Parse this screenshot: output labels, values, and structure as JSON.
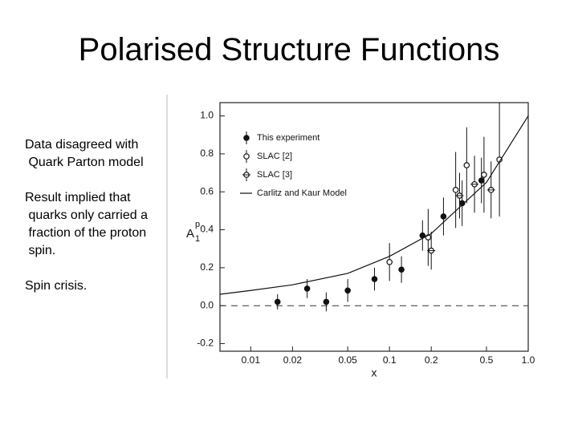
{
  "title": "Polarised Structure Functions",
  "paragraphs": [
    [
      "Data disagreed with",
      " Quark Parton model"
    ],
    [
      "Result implied that",
      " quarks only carried a",
      " fraction of the proton",
      " spin."
    ],
    [
      "Spin crisis."
    ]
  ],
  "chart_data": {
    "type": "scatter",
    "xlabel": "x",
    "ylabel": {
      "base": "A",
      "sub": "1",
      "sup": "p"
    },
    "xscale": "log",
    "xlim": [
      0.006,
      1.0
    ],
    "ylim": [
      -0.24,
      1.07
    ],
    "xticks": [
      0.01,
      0.02,
      0.05,
      0.1,
      0.2,
      0.5,
      {
        "value": 1.0,
        "label": "1.0"
      }
    ],
    "yticks": [
      {
        "value": 1.0,
        "label": "1.0"
      },
      0.8,
      0.6,
      0.4,
      0.2,
      {
        "value": 0.0,
        "label": "0.0"
      },
      -0.2
    ],
    "legend": "upper left",
    "series": [
      {
        "name": "This experiment",
        "marker": "filled",
        "color": "#111111",
        "x": [
          0.0156,
          0.0255,
          0.035,
          0.05,
          0.078,
          0.122,
          0.173,
          0.245,
          0.334,
          0.46
        ],
        "values": [
          0.02,
          0.09,
          0.02,
          0.08,
          0.14,
          0.19,
          0.37,
          0.47,
          0.54,
          0.66
        ],
        "errors": [
          0.04,
          0.05,
          0.05,
          0.06,
          0.06,
          0.07,
          0.08,
          0.1,
          0.12,
          0.12
        ]
      },
      {
        "name": "SLAC   [2]",
        "marker": "open",
        "color": "#111111",
        "x": [
          0.1,
          0.19,
          0.3,
          0.36,
          0.48,
          0.62
        ],
        "values": [
          0.23,
          0.36,
          0.61,
          0.74,
          0.69,
          0.77
        ],
        "errors": [
          0.1,
          0.15,
          0.2,
          0.2,
          0.2,
          0.3
        ]
      },
      {
        "name": "SLAC   [3]",
        "marker": "open-cross",
        "color": "#111111",
        "x": [
          0.2,
          0.32,
          0.41,
          0.54
        ],
        "values": [
          0.29,
          0.58,
          0.64,
          0.61
        ],
        "errors": [
          0.1,
          0.12,
          0.15,
          0.15
        ]
      },
      {
        "name": "Carlitz and Kaur Model",
        "marker": "line",
        "color": "#111111",
        "x": [
          0.006,
          0.01,
          0.02,
          0.05,
          0.1,
          0.2,
          0.5,
          1.0
        ],
        "values": [
          0.06,
          0.08,
          0.11,
          0.17,
          0.26,
          0.38,
          0.65,
          1.0
        ]
      }
    ]
  }
}
